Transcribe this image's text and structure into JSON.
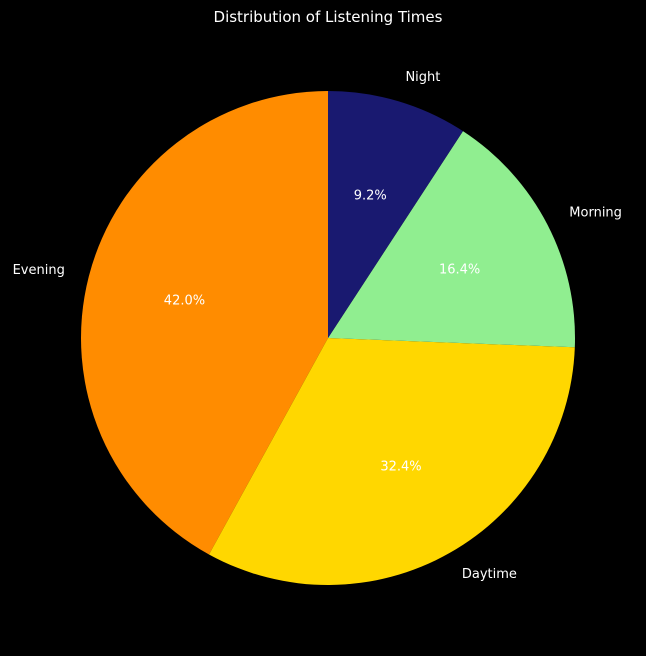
{
  "chart_data": {
    "type": "pie",
    "title": "Distribution of Listening Times",
    "start_angle_deg": 90,
    "direction": "counterclockwise",
    "background": "#000000",
    "slices": [
      {
        "label": "Evening",
        "value": 42.0,
        "pct_label": "42.0%",
        "color": "#ff8c00"
      },
      {
        "label": "Daytime",
        "value": 32.4,
        "pct_label": "32.4%",
        "color": "#ffd700"
      },
      {
        "label": "Morning",
        "value": 16.4,
        "pct_label": "16.4%",
        "color": "#90ee90"
      },
      {
        "label": "Night",
        "value": 9.2,
        "pct_label": "9.2%",
        "color": "#191970"
      }
    ]
  }
}
